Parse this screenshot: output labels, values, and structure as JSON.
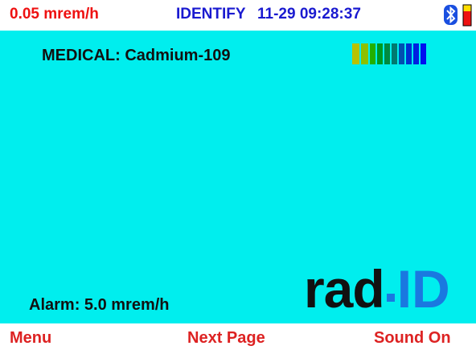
{
  "status": {
    "dose_rate": "0.05 mrem/h",
    "mode": "IDENTIFY",
    "datetime": "11-29 09:28:37"
  },
  "result": {
    "identification": "MEDICAL: Cadmium-109",
    "alarm": "Alarm: 5.0 mrem/h"
  },
  "logo": {
    "left": "rad",
    "right": "ID"
  },
  "softkeys": [
    "Menu",
    "Next Page",
    "Sound On"
  ]
}
